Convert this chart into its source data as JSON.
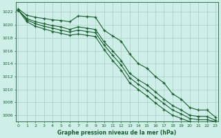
{
  "title": "Graphe pression niveau de la mer (hPa)",
  "bg_color": "#ceeee8",
  "grid_color": "#aaccc4",
  "line_color": "#1a5e30",
  "ylim": [
    1005.0,
    1023.5
  ],
  "xlim": [
    -0.3,
    23.3
  ],
  "yticks": [
    1006,
    1008,
    1010,
    1012,
    1014,
    1016,
    1018,
    1020,
    1022
  ],
  "xticks": [
    0,
    1,
    2,
    3,
    4,
    5,
    6,
    7,
    8,
    9,
    10,
    11,
    12,
    13,
    14,
    15,
    16,
    17,
    18,
    19,
    20,
    21,
    22,
    23
  ],
  "series1": [
    1022.5,
    1021.5,
    1021.2,
    1021.0,
    1020.8,
    1020.7,
    1020.5,
    1021.4,
    1021.3,
    1021.2,
    1019.2,
    1018.3,
    1017.5,
    1015.5,
    1014.0,
    1013.3,
    1012.0,
    1011.0,
    1009.3,
    1008.5,
    1007.2,
    1006.8,
    1006.8,
    1005.7
  ],
  "series2": [
    1022.3,
    1021.0,
    1020.5,
    1020.2,
    1019.9,
    1019.7,
    1019.3,
    1019.7,
    1019.5,
    1019.3,
    1017.4,
    1016.0,
    1014.5,
    1012.5,
    1011.5,
    1010.7,
    1009.6,
    1008.5,
    1007.5,
    1006.8,
    1006.0,
    1005.8,
    1005.8,
    1005.2
  ],
  "series3": [
    1022.3,
    1020.8,
    1020.2,
    1019.8,
    1019.5,
    1019.2,
    1018.9,
    1019.2,
    1019.0,
    1018.8,
    1016.9,
    1015.3,
    1013.8,
    1011.8,
    1010.8,
    1009.9,
    1008.8,
    1007.8,
    1006.8,
    1006.2,
    1005.5,
    1005.3,
    1005.3,
    1005.0
  ],
  "series4": [
    1022.3,
    1020.5,
    1019.8,
    1019.4,
    1019.0,
    1018.7,
    1018.4,
    1018.6,
    1018.4,
    1018.2,
    1016.2,
    1014.5,
    1013.0,
    1011.0,
    1010.0,
    1009.0,
    1007.9,
    1006.9,
    1006.0,
    1005.5,
    1005.0,
    1004.8,
    1004.9,
    1004.8
  ]
}
